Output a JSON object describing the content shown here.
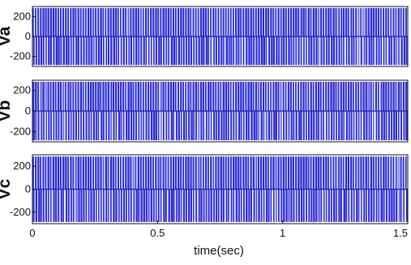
{
  "chart_data": [
    {
      "type": "line",
      "ylabel": "Va",
      "xlim": [
        0,
        1.5
      ],
      "ylim": [
        -300,
        300
      ],
      "yticks": [
        200,
        0,
        -200
      ],
      "ytick_labels": [
        "200",
        "0",
        "-200"
      ],
      "x_label_shown": false,
      "series": [
        {
          "pulse_count": 150,
          "levels": [
            -300,
            0,
            300
          ]
        }
      ]
    },
    {
      "type": "line",
      "ylabel": "Vb",
      "xlim": [
        0,
        1.5
      ],
      "ylim": [
        -300,
        300
      ],
      "yticks": [
        200,
        0,
        -200
      ],
      "ytick_labels": [
        "200",
        "0",
        "-200"
      ],
      "x_label_shown": false,
      "series": [
        {
          "pulse_count": 150,
          "levels": [
            -300,
            0,
            300
          ]
        }
      ]
    },
    {
      "type": "line",
      "ylabel": "Vc",
      "xlim": [
        0,
        1.5
      ],
      "ylim": [
        -300,
        300
      ],
      "yticks": [
        200,
        0,
        -200
      ],
      "ytick_labels": [
        "200",
        "0",
        "-200"
      ],
      "xticks": [
        0,
        0.5,
        1,
        1.5
      ],
      "xtick_labels": [
        "0",
        "0.5",
        "1",
        "1.5"
      ],
      "xlabel": "time(sec)",
      "series": [
        {
          "pulse_count": 150,
          "levels": [
            -300,
            0,
            300
          ]
        }
      ]
    }
  ],
  "colors": {
    "signal": "#2a2ad6",
    "signal_light": "#e8ecff",
    "axes": "#111111",
    "background": "#ffffff"
  }
}
